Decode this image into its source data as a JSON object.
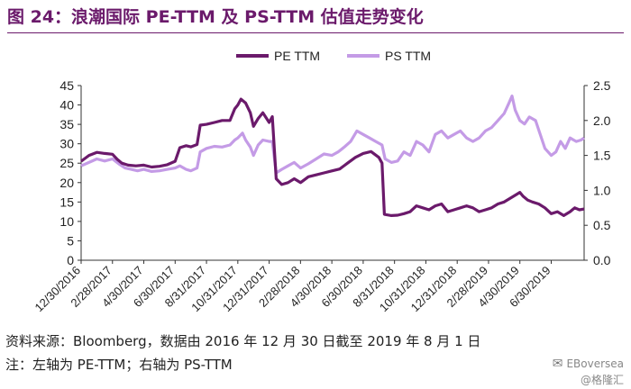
{
  "header": {
    "title": "图 24：浪潮国际 PE-TTM 及 PS-TTM 估值走势变化"
  },
  "colors": {
    "pe": "#6b1a6b",
    "ps": "#c49be6",
    "title": "#6b1a6b"
  },
  "chart_data": {
    "type": "line",
    "title": "图 24：浪潮国际 PE-TTM 及 PS-TTM 估值走势变化",
    "legend": [
      "PE TTM",
      "PS TTM"
    ],
    "legend_position": "top-center",
    "x_start": "12/30/2016",
    "x_end": "8/1/2019",
    "x_tick_labels": [
      "12/30/2016",
      "2/28/2017",
      "4/30/2017",
      "6/30/2017",
      "8/31/2017",
      "10/31/2017",
      "12/31/2017",
      "2/28/2018",
      "4/30/2018",
      "6/30/2018",
      "8/31/2018",
      "10/31/2018",
      "12/31/2018",
      "2/28/2019",
      "4/30/2019",
      "6/30/2019"
    ],
    "x_tick_months": [
      0,
      2,
      4,
      6,
      8,
      10,
      12,
      14,
      16,
      18,
      20,
      22,
      24,
      26,
      28,
      30
    ],
    "y_left": {
      "ticks": [
        0,
        5,
        10,
        15,
        20,
        25,
        30,
        35,
        40,
        45
      ],
      "range": [
        0,
        45
      ]
    },
    "y_right": {
      "ticks": [
        "0.0",
        "0.5",
        "1.0",
        "1.5",
        "2.0",
        "2.5"
      ],
      "range": [
        0,
        2.5
      ]
    },
    "grid": false,
    "series": [
      {
        "name": "PE TTM",
        "axis": "left",
        "points": [
          [
            0,
            25.5
          ],
          [
            0.5,
            27.0
          ],
          [
            1,
            27.8
          ],
          [
            1.5,
            27.5
          ],
          [
            2,
            27.3
          ],
          [
            2.3,
            26.0
          ],
          [
            2.6,
            25.0
          ],
          [
            3,
            24.5
          ],
          [
            3.5,
            24.3
          ],
          [
            4,
            24.5
          ],
          [
            4.5,
            24.0
          ],
          [
            5,
            24.2
          ],
          [
            5.5,
            24.6
          ],
          [
            6,
            25.5
          ],
          [
            6.3,
            29.0
          ],
          [
            6.7,
            29.5
          ],
          [
            7,
            29.2
          ],
          [
            7.4,
            29.8
          ],
          [
            7.6,
            34.8
          ],
          [
            8,
            35.0
          ],
          [
            8.5,
            35.5
          ],
          [
            9,
            36.0
          ],
          [
            9.5,
            36.0
          ],
          [
            9.8,
            39.0
          ],
          [
            10,
            40.0
          ],
          [
            10.2,
            41.5
          ],
          [
            10.5,
            40.5
          ],
          [
            10.8,
            38.0
          ],
          [
            11,
            34.5
          ],
          [
            11.3,
            36.5
          ],
          [
            11.6,
            38.0
          ],
          [
            12,
            35.5
          ],
          [
            12.2,
            37.0
          ],
          [
            12.45,
            21.0
          ],
          [
            12.8,
            19.5
          ],
          [
            13.2,
            20.0
          ],
          [
            13.6,
            21.0
          ],
          [
            14,
            20.0
          ],
          [
            14.5,
            21.5
          ],
          [
            15,
            22.0
          ],
          [
            15.5,
            22.5
          ],
          [
            16,
            23.0
          ],
          [
            16.5,
            23.5
          ],
          [
            17,
            25.0
          ],
          [
            17.5,
            26.5
          ],
          [
            18,
            27.5
          ],
          [
            18.5,
            28.0
          ],
          [
            19,
            26.5
          ],
          [
            19.2,
            25.0
          ],
          [
            19.35,
            11.8
          ],
          [
            19.8,
            11.5
          ],
          [
            20.2,
            11.6
          ],
          [
            20.6,
            12.0
          ],
          [
            21,
            12.5
          ],
          [
            21.4,
            14.0
          ],
          [
            21.8,
            13.5
          ],
          [
            22.2,
            13.0
          ],
          [
            22.6,
            14.0
          ],
          [
            23,
            14.5
          ],
          [
            23.4,
            12.5
          ],
          [
            23.8,
            13.0
          ],
          [
            24.2,
            13.5
          ],
          [
            24.6,
            14.0
          ],
          [
            25,
            13.5
          ],
          [
            25.4,
            12.5
          ],
          [
            25.8,
            13.0
          ],
          [
            26.2,
            13.5
          ],
          [
            26.6,
            14.5
          ],
          [
            27,
            15.0
          ],
          [
            27.4,
            16.0
          ],
          [
            27.8,
            17.0
          ],
          [
            28,
            17.5
          ],
          [
            28.2,
            16.5
          ],
          [
            28.5,
            15.5
          ],
          [
            28.8,
            15.0
          ],
          [
            29.2,
            14.5
          ],
          [
            29.6,
            13.5
          ],
          [
            30,
            12.0
          ],
          [
            30.4,
            12.5
          ],
          [
            30.8,
            11.5
          ],
          [
            31.2,
            12.5
          ],
          [
            31.5,
            13.5
          ],
          [
            31.8,
            13.0
          ],
          [
            32.1,
            13.2
          ]
        ]
      },
      {
        "name": "PS TTM",
        "axis": "right",
        "points": [
          [
            0,
            1.35
          ],
          [
            0.5,
            1.4
          ],
          [
            1,
            1.45
          ],
          [
            1.5,
            1.42
          ],
          [
            2,
            1.45
          ],
          [
            2.4,
            1.38
          ],
          [
            2.8,
            1.32
          ],
          [
            3.2,
            1.3
          ],
          [
            3.6,
            1.28
          ],
          [
            4,
            1.3
          ],
          [
            4.5,
            1.27
          ],
          [
            5,
            1.28
          ],
          [
            5.5,
            1.3
          ],
          [
            6,
            1.32
          ],
          [
            6.3,
            1.35
          ],
          [
            6.7,
            1.3
          ],
          [
            7,
            1.28
          ],
          [
            7.4,
            1.32
          ],
          [
            7.6,
            1.55
          ],
          [
            8,
            1.6
          ],
          [
            8.5,
            1.63
          ],
          [
            9,
            1.62
          ],
          [
            9.5,
            1.65
          ],
          [
            9.8,
            1.72
          ],
          [
            10,
            1.75
          ],
          [
            10.3,
            1.82
          ],
          [
            10.5,
            1.72
          ],
          [
            10.8,
            1.62
          ],
          [
            11,
            1.5
          ],
          [
            11.3,
            1.65
          ],
          [
            11.6,
            1.72
          ],
          [
            12,
            1.7
          ],
          [
            12.2,
            1.7
          ],
          [
            12.45,
            1.25
          ],
          [
            12.8,
            1.3
          ],
          [
            13.2,
            1.35
          ],
          [
            13.6,
            1.4
          ],
          [
            14,
            1.32
          ],
          [
            14.5,
            1.38
          ],
          [
            15,
            1.45
          ],
          [
            15.5,
            1.52
          ],
          [
            16,
            1.5
          ],
          [
            16.4,
            1.55
          ],
          [
            16.8,
            1.62
          ],
          [
            17.2,
            1.7
          ],
          [
            17.6,
            1.85
          ],
          [
            18,
            1.8
          ],
          [
            18.4,
            1.75
          ],
          [
            18.8,
            1.7
          ],
          [
            19.2,
            1.65
          ],
          [
            19.4,
            1.45
          ],
          [
            19.8,
            1.4
          ],
          [
            20.2,
            1.42
          ],
          [
            20.6,
            1.55
          ],
          [
            21,
            1.5
          ],
          [
            21.4,
            1.7
          ],
          [
            21.8,
            1.65
          ],
          [
            22.2,
            1.55
          ],
          [
            22.6,
            1.8
          ],
          [
            23,
            1.85
          ],
          [
            23.4,
            1.75
          ],
          [
            23.8,
            1.8
          ],
          [
            24.2,
            1.85
          ],
          [
            24.6,
            1.75
          ],
          [
            25,
            1.7
          ],
          [
            25.4,
            1.75
          ],
          [
            25.8,
            1.85
          ],
          [
            26.2,
            1.9
          ],
          [
            26.6,
            2.0
          ],
          [
            27,
            2.1
          ],
          [
            27.3,
            2.25
          ],
          [
            27.5,
            2.35
          ],
          [
            27.7,
            2.15
          ],
          [
            28,
            2.0
          ],
          [
            28.3,
            1.95
          ],
          [
            28.6,
            2.05
          ],
          [
            29,
            2.0
          ],
          [
            29.3,
            1.8
          ],
          [
            29.6,
            1.6
          ],
          [
            30,
            1.5
          ],
          [
            30.3,
            1.55
          ],
          [
            30.6,
            1.7
          ],
          [
            30.9,
            1.6
          ],
          [
            31.2,
            1.75
          ],
          [
            31.6,
            1.7
          ],
          [
            31.9,
            1.72
          ],
          [
            32.1,
            1.75
          ]
        ]
      }
    ]
  },
  "footer": {
    "source": "资料来源：Bloomberg，数据由 2016 年 12 月 30 日截至 2019 年 8 月 1 日",
    "note": "注：左轴为 PE-TTM；右轴为 PS-TTM",
    "watermark_handle": "EBoversea",
    "watermark_name": "@格隆汇"
  }
}
